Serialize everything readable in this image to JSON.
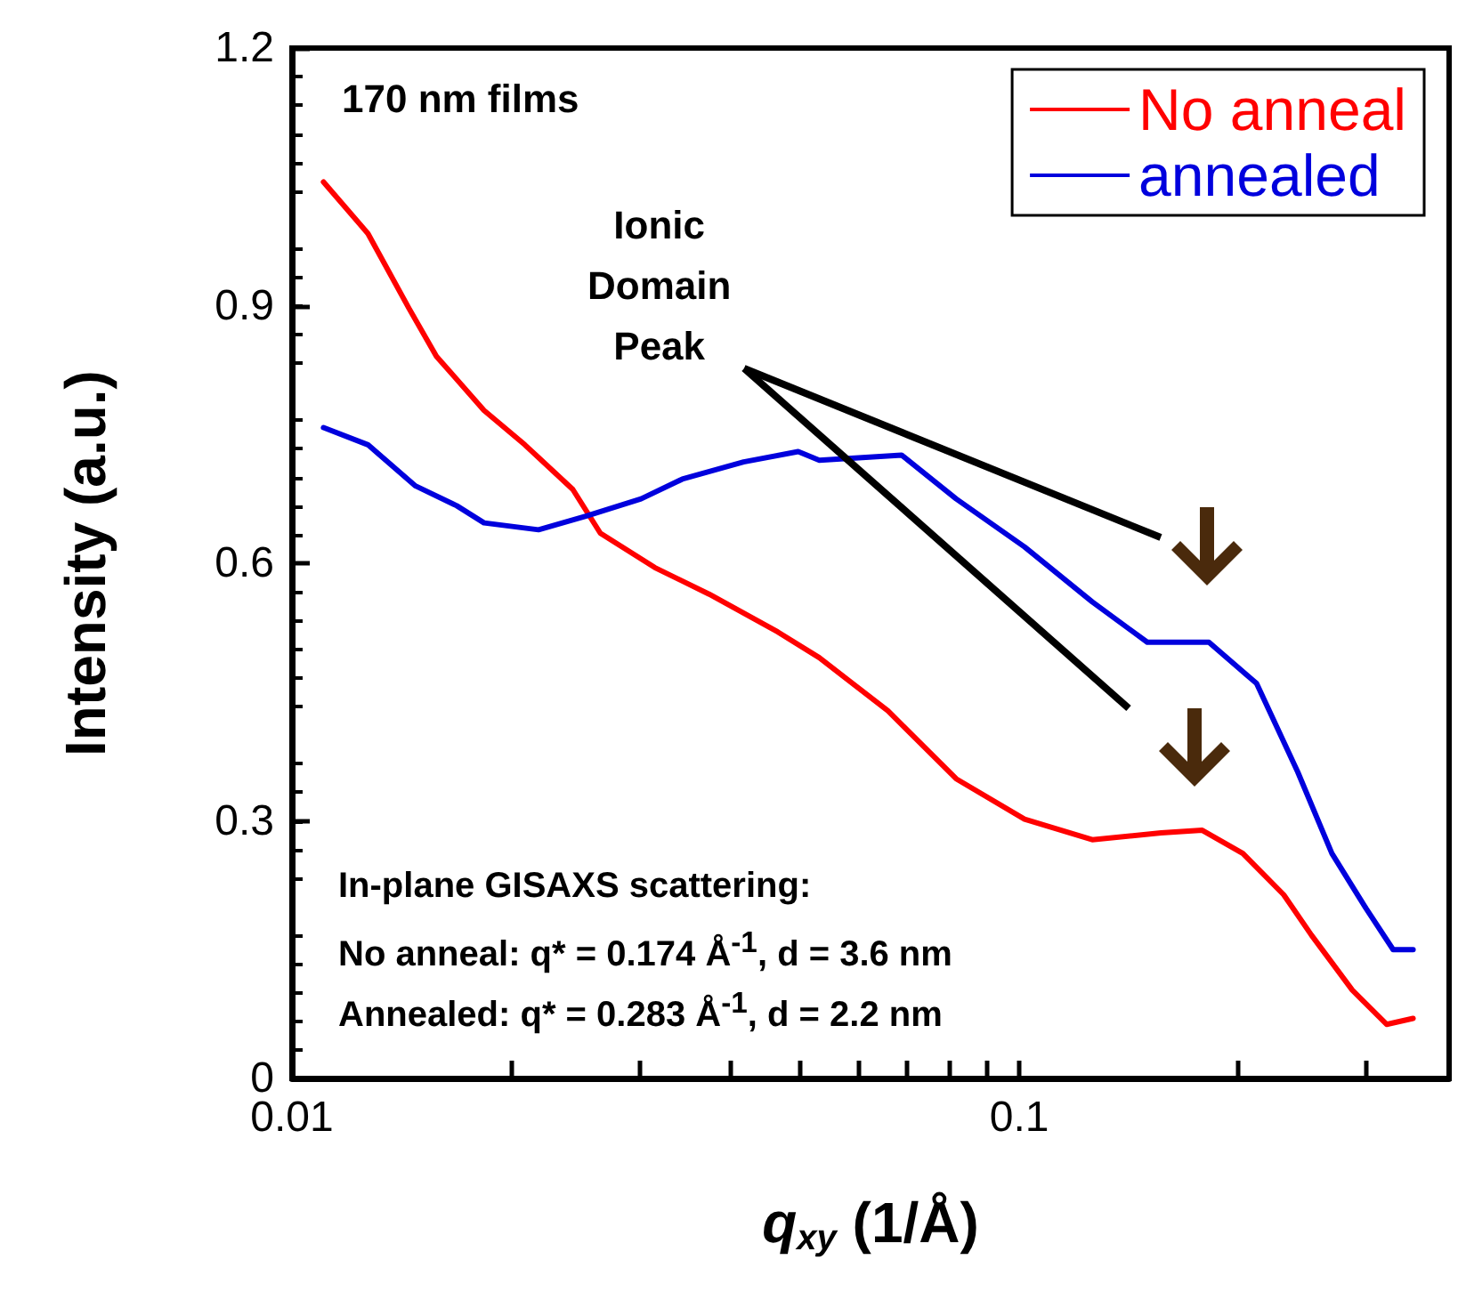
{
  "chart_data": {
    "type": "line",
    "xlabel": "q$_{xy}$ (1/Å)",
    "ylabel": "Intensity (a.u.)",
    "log": "x",
    "xlim": [
      0.01,
      0.39
    ],
    "ylim": [
      0,
      1.2
    ],
    "xticks": [
      0.01,
      {
        "value": 0.02,
        "label": null
      },
      {
        "value": 0.03,
        "label": null
      },
      {
        "value": 0.04,
        "label": null
      },
      {
        "value": 0.05,
        "label": null
      },
      {
        "value": 0.06,
        "label": null
      },
      {
        "value": 0.07,
        "label": null
      },
      {
        "value": 0.08,
        "label": null
      },
      {
        "value": 0.09,
        "label": null
      },
      0.1,
      {
        "value": 0.2,
        "label": null
      },
      {
        "value": 0.3,
        "label": null
      }
    ],
    "yticks": [
      0,
      0.3,
      0.6,
      0.9,
      1.2
    ],
    "grid": false,
    "legend": "top right",
    "marker": "none",
    "line_style": "solid",
    "annotations": [
      "170 nm films",
      "Ionic\nDomain\nPeak",
      "In-plane GISAXS scattering:",
      "No anneal: q* = 0.174 Å$^{-1}$, d = 3.6 nm",
      "Annealed: q* = 0.283 Å$^{-1}$, d = 2.2 nm"
    ],
    "series": [
      {
        "name": "No anneal",
        "color": "#ff0000",
        "x": [
          0.01105,
          0.01272,
          0.01448,
          0.0158,
          0.01837,
          0.0209,
          0.02433,
          0.02655,
          0.03154,
          0.03746,
          0.04656,
          0.0531,
          0.066,
          0.0819,
          0.1017,
          0.126,
          0.1567,
          0.1785,
          0.203,
          0.231,
          0.2522,
          0.287,
          0.32,
          0.348
        ],
        "values": [
          1.044,
          0.984,
          0.897,
          0.841,
          0.778,
          0.738,
          0.686,
          0.635,
          0.595,
          0.564,
          0.52,
          0.49,
          0.428,
          0.349,
          0.302,
          0.278,
          0.286,
          0.289,
          0.262,
          0.214,
          0.167,
          0.103,
          0.063,
          0.07
        ]
      },
      {
        "name": "annealed",
        "color": "#0000dd",
        "x": [
          0.01105,
          0.01272,
          0.01479,
          0.01685,
          0.01837,
          0.02183,
          0.02541,
          0.0302,
          0.03441,
          0.04179,
          0.04967,
          0.0531,
          0.0689,
          0.0819,
          0.1017,
          0.126,
          0.15,
          0.1823,
          0.212,
          0.2415,
          0.2691,
          0.2998,
          0.3267,
          0.348
        ],
        "values": [
          0.758,
          0.738,
          0.69,
          0.667,
          0.647,
          0.639,
          0.655,
          0.675,
          0.698,
          0.718,
          0.73,
          0.72,
          0.726,
          0.675,
          0.619,
          0.555,
          0.508,
          0.508,
          0.46,
          0.357,
          0.262,
          0.198,
          0.15,
          0.15
        ]
      }
    ]
  }
}
